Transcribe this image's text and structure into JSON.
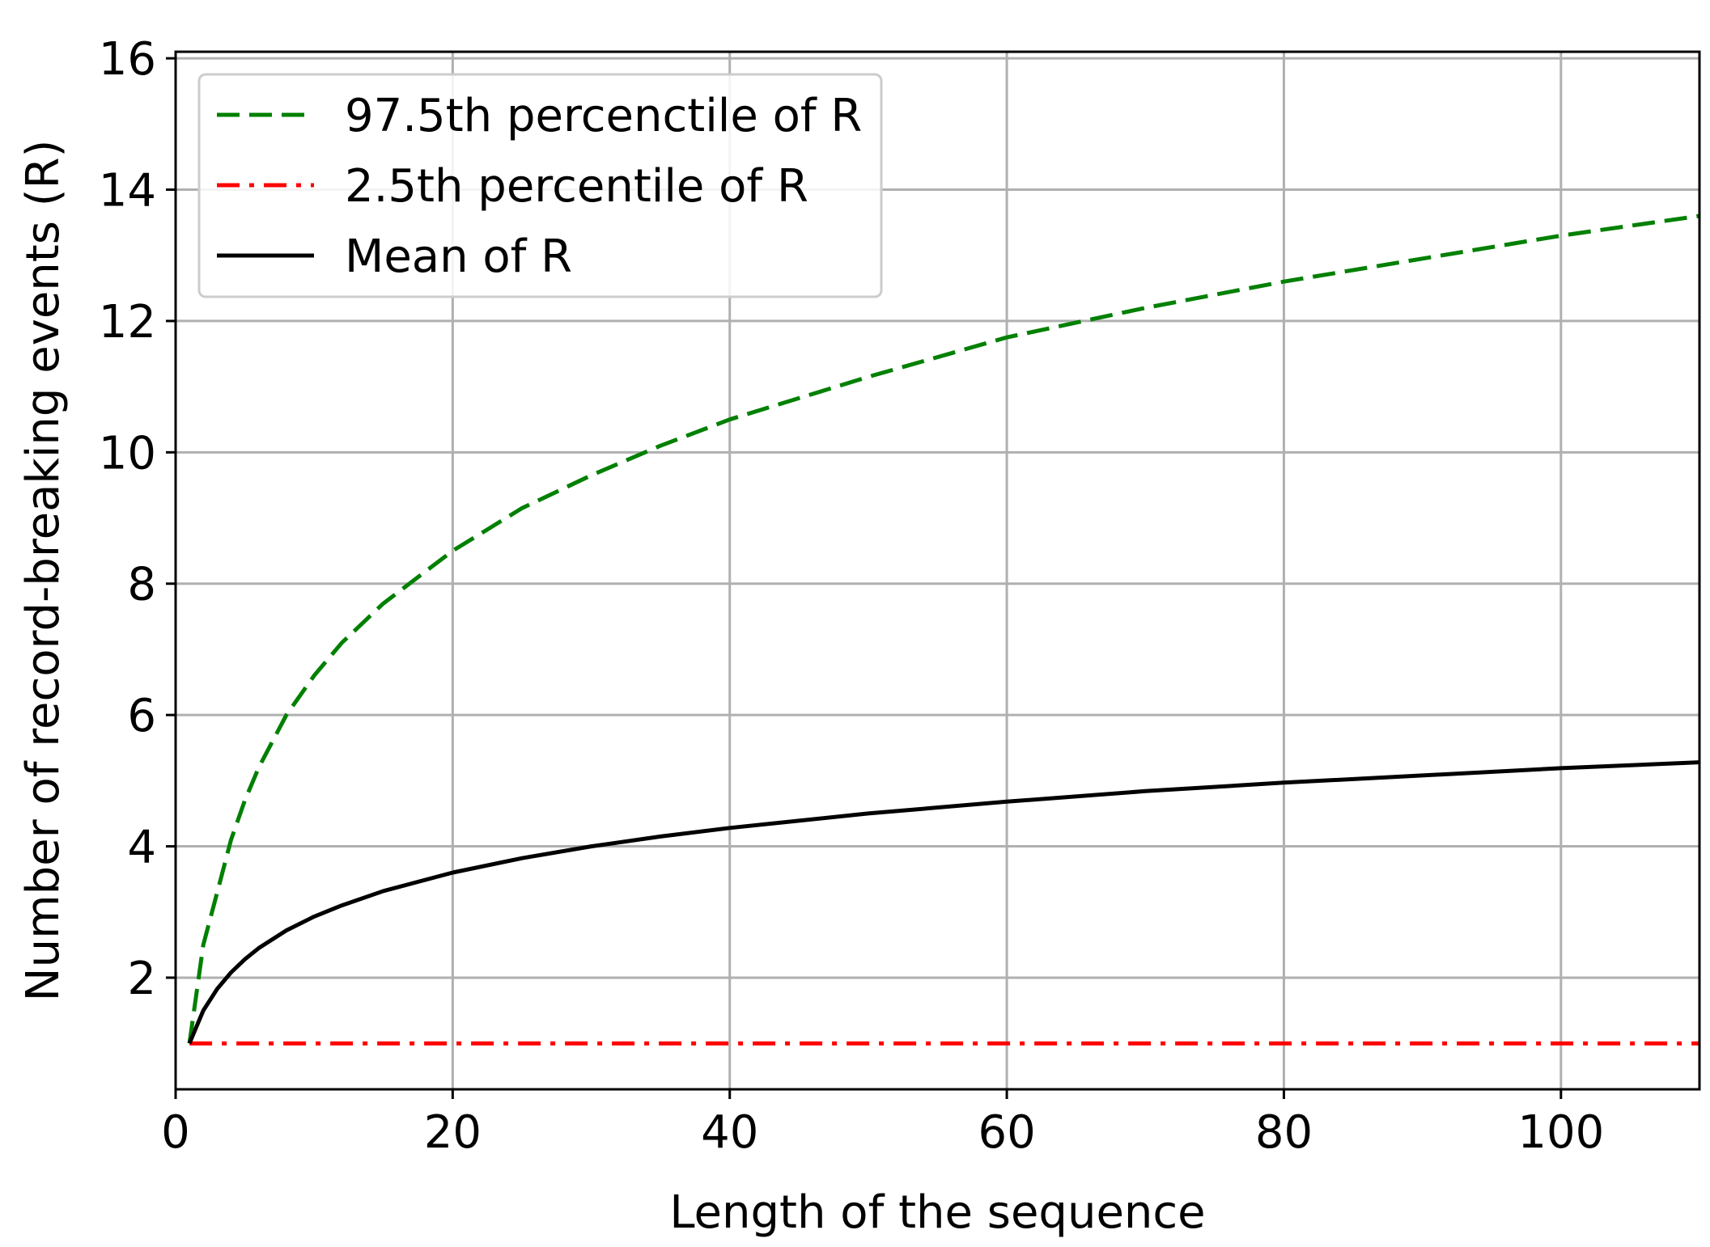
{
  "chart_data": {
    "type": "line",
    "title": "",
    "xlabel": "Length of the sequence",
    "ylabel": "Number of record-breaking events (R)",
    "xlim": [
      0,
      110
    ],
    "ylim": [
      0.3,
      16.1
    ],
    "xticks": [
      0,
      20,
      40,
      60,
      80,
      100
    ],
    "yticks": [
      2,
      4,
      6,
      8,
      10,
      12,
      14,
      16
    ],
    "xtick_labels": [
      "0",
      "20",
      "40",
      "60",
      "80",
      "100"
    ],
    "ytick_labels": [
      "2",
      "4",
      "6",
      "8",
      "10",
      "12",
      "14",
      "16"
    ],
    "grid": true,
    "legend_position": "top-left",
    "series": [
      {
        "name": "97.5th percenctile of R",
        "color": "#008000",
        "style": "dashed",
        "x": [
          1,
          2,
          3,
          4,
          5,
          6,
          8,
          10,
          12,
          15,
          20,
          25,
          30,
          35,
          40,
          50,
          60,
          70,
          80,
          90,
          100,
          110
        ],
        "y": [
          1.0,
          2.5,
          3.3,
          4.1,
          4.7,
          5.2,
          6.0,
          6.6,
          7.1,
          7.7,
          8.5,
          9.15,
          9.65,
          10.1,
          10.5,
          11.15,
          11.75,
          12.2,
          12.6,
          12.95,
          13.3,
          13.6
        ]
      },
      {
        "name": "2.5th percentile of R",
        "color": "#ff0000",
        "style": "dashdot",
        "x": [
          1,
          110
        ],
        "y": [
          1.0,
          1.0
        ]
      },
      {
        "name": "Mean of R",
        "color": "#000000",
        "style": "solid",
        "x": [
          1,
          2,
          3,
          4,
          5,
          6,
          8,
          10,
          12,
          15,
          20,
          25,
          30,
          35,
          40,
          50,
          60,
          70,
          80,
          90,
          100,
          110
        ],
        "y": [
          1.0,
          1.5,
          1.83,
          2.08,
          2.28,
          2.45,
          2.72,
          2.93,
          3.1,
          3.32,
          3.6,
          3.82,
          4.0,
          4.15,
          4.28,
          4.5,
          4.68,
          4.84,
          4.97,
          5.08,
          5.19,
          5.28
        ]
      }
    ]
  }
}
